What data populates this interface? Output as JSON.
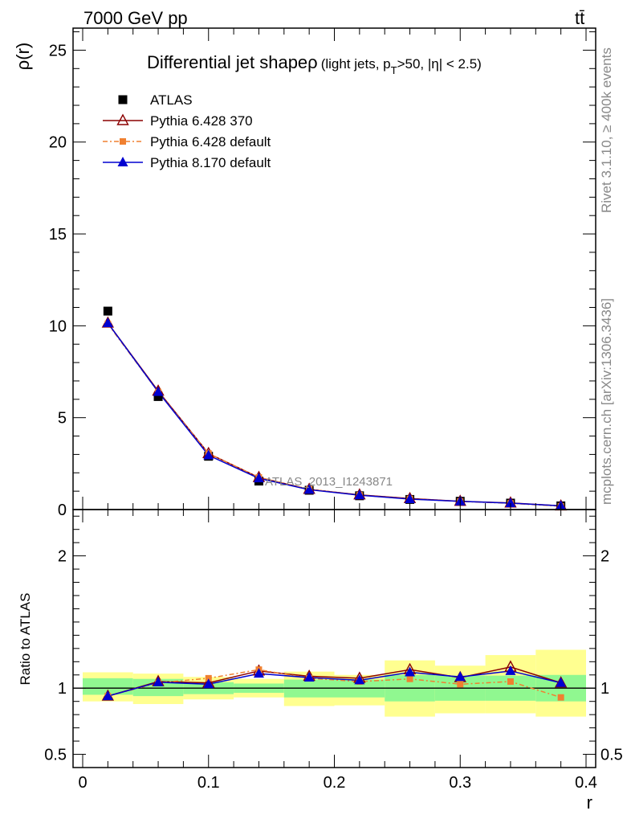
{
  "header": {
    "energy_label": "7000 GeV pp",
    "process_label": "tt̄"
  },
  "side_labels": {
    "rivet": "Rivet 3.1.10, ≥ 400k events",
    "mcplots": "mcplots.cern.ch [arXiv:1306.3436]"
  },
  "watermark": "ATLAS_2013_I1243871",
  "chart_data": [
    {
      "panel": "main",
      "type": "line",
      "title_main": "Differential jet shape",
      "title_rho": "ρ",
      "title_sub_prefix": "(light jets, p",
      "title_sub_sub": "T",
      "title_sub_suffix": ">50, |η| < 2.5)",
      "ylabel": "ρ(r)",
      "xlabel": "",
      "xlim": [
        0,
        0.4
      ],
      "ylim": [
        0,
        26.2
      ],
      "yticks": [
        0,
        5,
        10,
        15,
        20,
        25
      ],
      "legend_position": "top-left",
      "x": [
        0.02,
        0.06,
        0.1,
        0.14,
        0.18,
        0.22,
        0.26,
        0.3,
        0.34,
        0.38
      ],
      "series": [
        {
          "name": "ATLAS",
          "color": "#000000",
          "marker": "square",
          "values": [
            10.8,
            6.15,
            2.9,
            1.55,
            1.05,
            0.75,
            0.55,
            0.45,
            0.35,
            0.2
          ]
        },
        {
          "name": "Pythia 6.428 370",
          "color": "#8b0000",
          "marker": "open-triangle",
          "values": [
            10.15,
            6.45,
            3.05,
            1.75,
            1.1,
            0.8,
            0.6,
            0.45,
            0.36,
            0.2
          ]
        },
        {
          "name": "Pythia 6.428 default",
          "color": "#f08030",
          "marker": "small-square",
          "dash": "6,3,2,3",
          "values": [
            10.1,
            6.4,
            3.05,
            1.75,
            1.1,
            0.78,
            0.58,
            0.44,
            0.34,
            0.18
          ]
        },
        {
          "name": "Pythia 8.170 default",
          "color": "#0000d0",
          "marker": "triangle",
          "values": [
            10.15,
            6.4,
            2.95,
            1.7,
            1.08,
            0.78,
            0.57,
            0.45,
            0.35,
            0.2
          ]
        }
      ]
    },
    {
      "panel": "ratio",
      "type": "line",
      "ylabel": "Ratio to ATLAS",
      "xlabel": "r",
      "xlim": [
        0,
        0.4
      ],
      "ylim": [
        0.4,
        2.35
      ],
      "yticks": [
        0.5,
        1,
        2
      ],
      "xticks": [
        0,
        0.1,
        0.2,
        0.3,
        0.4
      ],
      "x_bins": [
        [
          0,
          0.04
        ],
        [
          0.04,
          0.08
        ],
        [
          0.08,
          0.12
        ],
        [
          0.12,
          0.16
        ],
        [
          0.16,
          0.2
        ],
        [
          0.2,
          0.24
        ],
        [
          0.24,
          0.28
        ],
        [
          0.28,
          0.32
        ],
        [
          0.32,
          0.36
        ],
        [
          0.36,
          0.4
        ]
      ],
      "band_stat": {
        "color": "#90f890",
        "low": [
          0.95,
          0.94,
          0.955,
          0.965,
          0.93,
          0.93,
          0.9,
          0.905,
          0.905,
          0.9
        ],
        "high": [
          1.075,
          1.07,
          1.045,
          1.035,
          1.065,
          1.065,
          1.1,
          1.095,
          1.095,
          1.1
        ]
      },
      "band_total": {
        "color": "#ffff90",
        "low": [
          0.9,
          0.88,
          0.915,
          0.93,
          0.865,
          0.87,
          0.785,
          0.81,
          0.81,
          0.785
        ],
        "high": [
          1.12,
          1.11,
          1.085,
          1.07,
          1.125,
          1.1,
          1.21,
          1.17,
          1.25,
          1.29
        ]
      },
      "x": [
        0.02,
        0.06,
        0.1,
        0.14,
        0.18,
        0.22,
        0.26,
        0.3,
        0.34,
        0.38
      ],
      "series": [
        {
          "name": "Pythia 6.428 370",
          "color": "#8b0000",
          "marker": "open-triangle",
          "values": [
            0.94,
            1.05,
            1.04,
            1.13,
            1.09,
            1.075,
            1.14,
            1.08,
            1.16,
            1.04
          ]
        },
        {
          "name": "Pythia 6.428 default",
          "color": "#f08030",
          "marker": "small-square",
          "dash": "6,3,2,3",
          "values": [
            0.94,
            1.04,
            1.075,
            1.14,
            1.075,
            1.05,
            1.07,
            1.03,
            1.05,
            0.93
          ]
        },
        {
          "name": "Pythia 8.170 default",
          "color": "#0000d0",
          "marker": "triangle",
          "values": [
            0.94,
            1.045,
            1.03,
            1.11,
            1.08,
            1.06,
            1.12,
            1.085,
            1.13,
            1.04
          ]
        }
      ]
    }
  ]
}
